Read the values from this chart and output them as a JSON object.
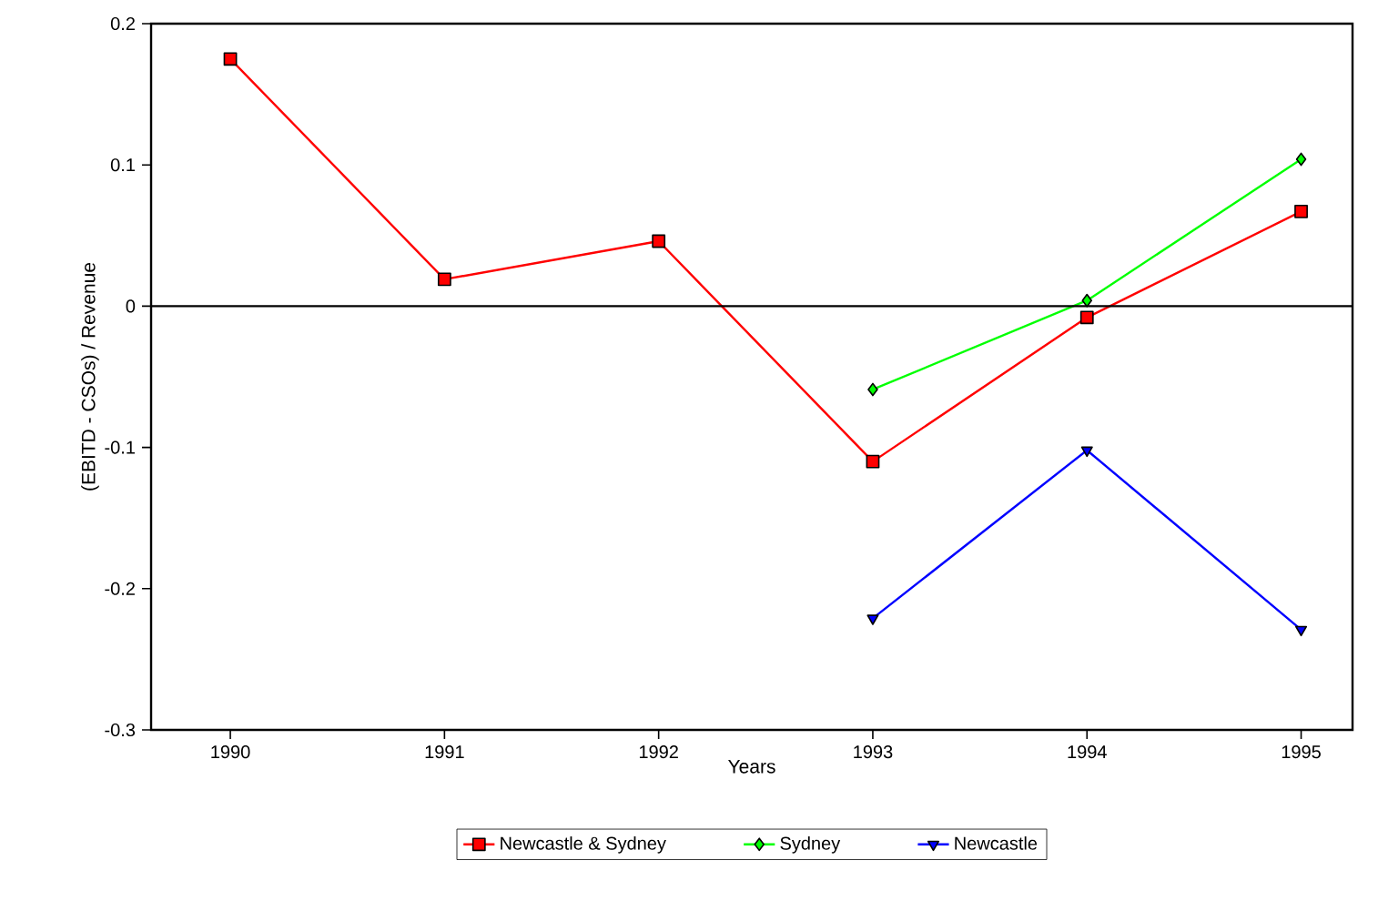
{
  "chart_data": {
    "type": "line",
    "xlabel": "Years",
    "ylabel": "(EBITD - CSOs) / Revenue",
    "x": [
      1990,
      1991,
      1992,
      1993,
      1994,
      1995
    ],
    "series": [
      {
        "name": "Newcastle & Sydney",
        "color": "#ff0000",
        "marker": "square",
        "values": [
          0.175,
          0.019,
          0.046,
          -0.11,
          -0.008,
          0.067
        ]
      },
      {
        "name": "Sydney",
        "color": "#00ff00",
        "marker": "diamond",
        "values": [
          null,
          null,
          null,
          -0.059,
          0.004,
          0.104
        ]
      },
      {
        "name": "Newcastle",
        "color": "#0000ff",
        "marker": "triangle",
        "values": [
          null,
          null,
          null,
          -0.221,
          -0.102,
          -0.229
        ]
      }
    ],
    "xlim": [
      1989.63,
      1995.24
    ],
    "xticks": [
      1990,
      1991,
      1992,
      1993,
      1994,
      1995
    ],
    "ylim": [
      -0.3,
      0.2
    ],
    "yticks": [
      -0.3,
      -0.2,
      -0.1,
      0,
      0.1,
      0.2
    ],
    "ref_lines": [
      {
        "axis": "y",
        "value": 0,
        "color": "#000000"
      }
    ],
    "grid": false,
    "legend": "bottom"
  }
}
